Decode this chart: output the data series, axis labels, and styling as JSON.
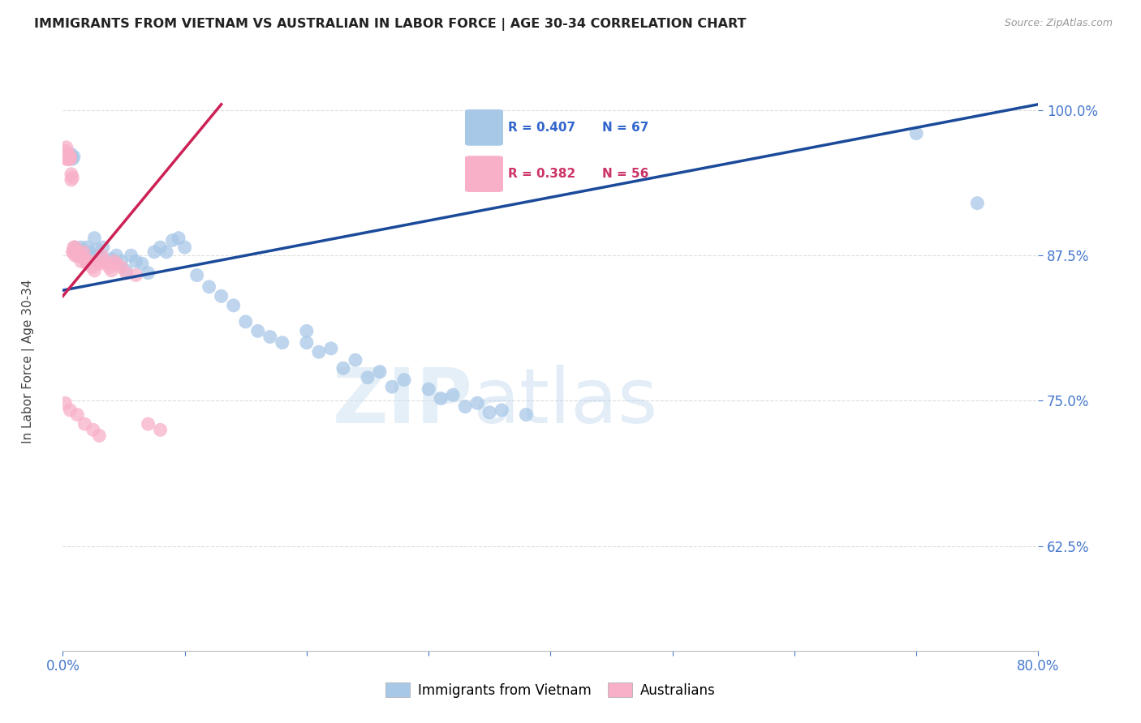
{
  "title": "IMMIGRANTS FROM VIETNAM VS AUSTRALIAN IN LABOR FORCE | AGE 30-34 CORRELATION CHART",
  "source": "Source: ZipAtlas.com",
  "ylabel": "In Labor Force | Age 30-34",
  "xmin": 0.0,
  "xmax": 0.8,
  "ymin": 0.535,
  "ymax": 1.045,
  "yticks": [
    0.625,
    0.75,
    0.875,
    1.0
  ],
  "ytick_labels": [
    "62.5%",
    "75.0%",
    "87.5%",
    "100.0%"
  ],
  "xticks": [
    0.0,
    0.1,
    0.2,
    0.3,
    0.4,
    0.5,
    0.6,
    0.7,
    0.8
  ],
  "xtick_labels": [
    "0.0%",
    "",
    "",
    "",
    "",
    "",
    "",
    "",
    "80.0%"
  ],
  "blue_color": "#a8c8e8",
  "blue_line_color": "#1a4a99",
  "pink_color": "#f8b0c8",
  "pink_line_color": "#cc2255",
  "blue_trend_x0": 0.0,
  "blue_trend_y0": 0.845,
  "blue_trend_x1": 0.8,
  "blue_trend_y1": 1.005,
  "pink_trend_x0": 0.0,
  "pink_trend_y0": 0.84,
  "pink_trend_x1": 0.13,
  "pink_trend_y1": 1.005,
  "blue_scatter_x": [
    0.003,
    0.004,
    0.005,
    0.006,
    0.007,
    0.008,
    0.009,
    0.01,
    0.011,
    0.012,
    0.013,
    0.014,
    0.015,
    0.016,
    0.017,
    0.018,
    0.02,
    0.022,
    0.024,
    0.026,
    0.028,
    0.03,
    0.033,
    0.036,
    0.04,
    0.044,
    0.048,
    0.052,
    0.056,
    0.06,
    0.065,
    0.07,
    0.075,
    0.08,
    0.085,
    0.09,
    0.095,
    0.1,
    0.11,
    0.12,
    0.13,
    0.14,
    0.15,
    0.16,
    0.17,
    0.18,
    0.2,
    0.22,
    0.24,
    0.26,
    0.28,
    0.3,
    0.32,
    0.34,
    0.36,
    0.38,
    0.2,
    0.21,
    0.23,
    0.25,
    0.27,
    0.31,
    0.33,
    0.35,
    0.7,
    0.75
  ],
  "blue_scatter_y": [
    0.96,
    0.96,
    0.96,
    0.96,
    0.962,
    0.958,
    0.96,
    0.882,
    0.878,
    0.875,
    0.88,
    0.878,
    0.882,
    0.875,
    0.878,
    0.875,
    0.882,
    0.878,
    0.875,
    0.89,
    0.88,
    0.875,
    0.882,
    0.87,
    0.872,
    0.875,
    0.87,
    0.862,
    0.875,
    0.87,
    0.868,
    0.86,
    0.878,
    0.882,
    0.878,
    0.888,
    0.89,
    0.882,
    0.858,
    0.848,
    0.84,
    0.832,
    0.818,
    0.81,
    0.805,
    0.8,
    0.81,
    0.795,
    0.785,
    0.775,
    0.768,
    0.76,
    0.755,
    0.748,
    0.742,
    0.738,
    0.8,
    0.792,
    0.778,
    0.77,
    0.762,
    0.752,
    0.745,
    0.74,
    0.98,
    0.92
  ],
  "pink_scatter_x": [
    0.001,
    0.002,
    0.002,
    0.003,
    0.003,
    0.003,
    0.004,
    0.004,
    0.004,
    0.005,
    0.005,
    0.005,
    0.005,
    0.006,
    0.006,
    0.007,
    0.007,
    0.008,
    0.008,
    0.009,
    0.009,
    0.01,
    0.01,
    0.011,
    0.012,
    0.013,
    0.014,
    0.015,
    0.016,
    0.017,
    0.018,
    0.019,
    0.02,
    0.022,
    0.024,
    0.026,
    0.028,
    0.03,
    0.032,
    0.034,
    0.036,
    0.038,
    0.04,
    0.042,
    0.044,
    0.048,
    0.052,
    0.06,
    0.07,
    0.08,
    0.002,
    0.006,
    0.012,
    0.018,
    0.025,
    0.03
  ],
  "pink_scatter_y": [
    0.96,
    0.965,
    0.96,
    0.968,
    0.962,
    0.958,
    0.96,
    0.962,
    0.958,
    0.96,
    0.958,
    0.962,
    0.958,
    0.958,
    0.96,
    0.945,
    0.94,
    0.942,
    0.878,
    0.882,
    0.878,
    0.882,
    0.875,
    0.878,
    0.875,
    0.878,
    0.875,
    0.87,
    0.875,
    0.878,
    0.872,
    0.87,
    0.868,
    0.87,
    0.865,
    0.862,
    0.87,
    0.868,
    0.875,
    0.87,
    0.868,
    0.865,
    0.862,
    0.87,
    0.868,
    0.865,
    0.86,
    0.858,
    0.73,
    0.725,
    0.748,
    0.742,
    0.738,
    0.73,
    0.725,
    0.72
  ]
}
